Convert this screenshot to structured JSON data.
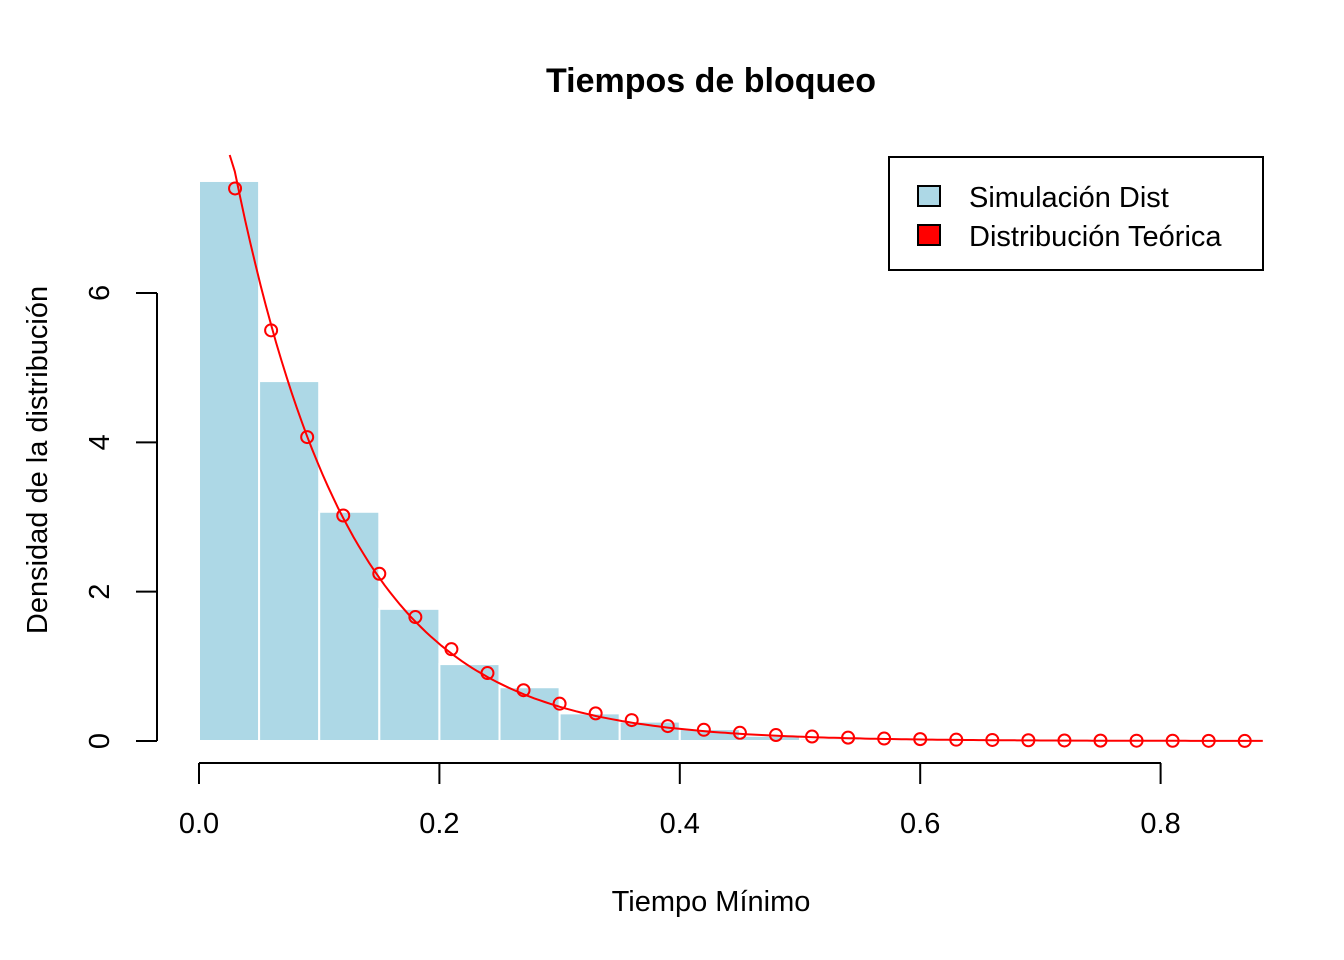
{
  "chart_data": {
    "type": "bar",
    "title": "Tiempos de bloqueo",
    "xlabel": "Tiempo Mínimo",
    "ylabel": "Densidad de la distribución",
    "xlim": [
      0,
      0.88
    ],
    "ylim": [
      0,
      7.5
    ],
    "x_ticks": [
      "0.0",
      "0.2",
      "0.4",
      "0.6",
      "0.8"
    ],
    "x_tick_values": [
      0,
      0.2,
      0.4,
      0.6,
      0.8
    ],
    "y_ticks": [
      "0",
      "2",
      "4",
      "6"
    ],
    "y_tick_values": [
      0,
      2,
      4,
      6
    ],
    "grid": false,
    "legend_position": "top-right",
    "histogram": {
      "name": "Simulación Dist",
      "color": "#ADD8E6",
      "bin_edges": [
        0,
        0.05,
        0.1,
        0.15,
        0.2,
        0.25,
        0.3,
        0.35,
        0.4,
        0.45,
        0.5,
        0.55
      ],
      "density": [
        7.5,
        4.82,
        3.07,
        1.77,
        1.03,
        0.72,
        0.37,
        0.26,
        0.16,
        0.07,
        0.03
      ]
    },
    "theoretical": {
      "name": "Distribución Teórica",
      "color": "#FF0000",
      "rate": 10.4,
      "x": [
        0.03,
        0.06,
        0.09,
        0.12,
        0.15,
        0.18,
        0.21,
        0.24,
        0.27,
        0.3,
        0.33,
        0.36,
        0.39,
        0.42,
        0.45,
        0.48,
        0.51,
        0.54,
        0.57,
        0.6,
        0.63,
        0.66,
        0.69,
        0.72,
        0.75,
        0.78,
        0.81,
        0.84,
        0.87
      ],
      "y": [
        7.4,
        5.5,
        4.07,
        3.02,
        2.24,
        1.66,
        1.23,
        0.91,
        0.68,
        0.5,
        0.37,
        0.28,
        0.2,
        0.15,
        0.11,
        0.08,
        0.06,
        0.045,
        0.033,
        0.025,
        0.018,
        0.014,
        0.01,
        0.007,
        0.005,
        0.004,
        0.003,
        0.002,
        0.001
      ]
    }
  }
}
